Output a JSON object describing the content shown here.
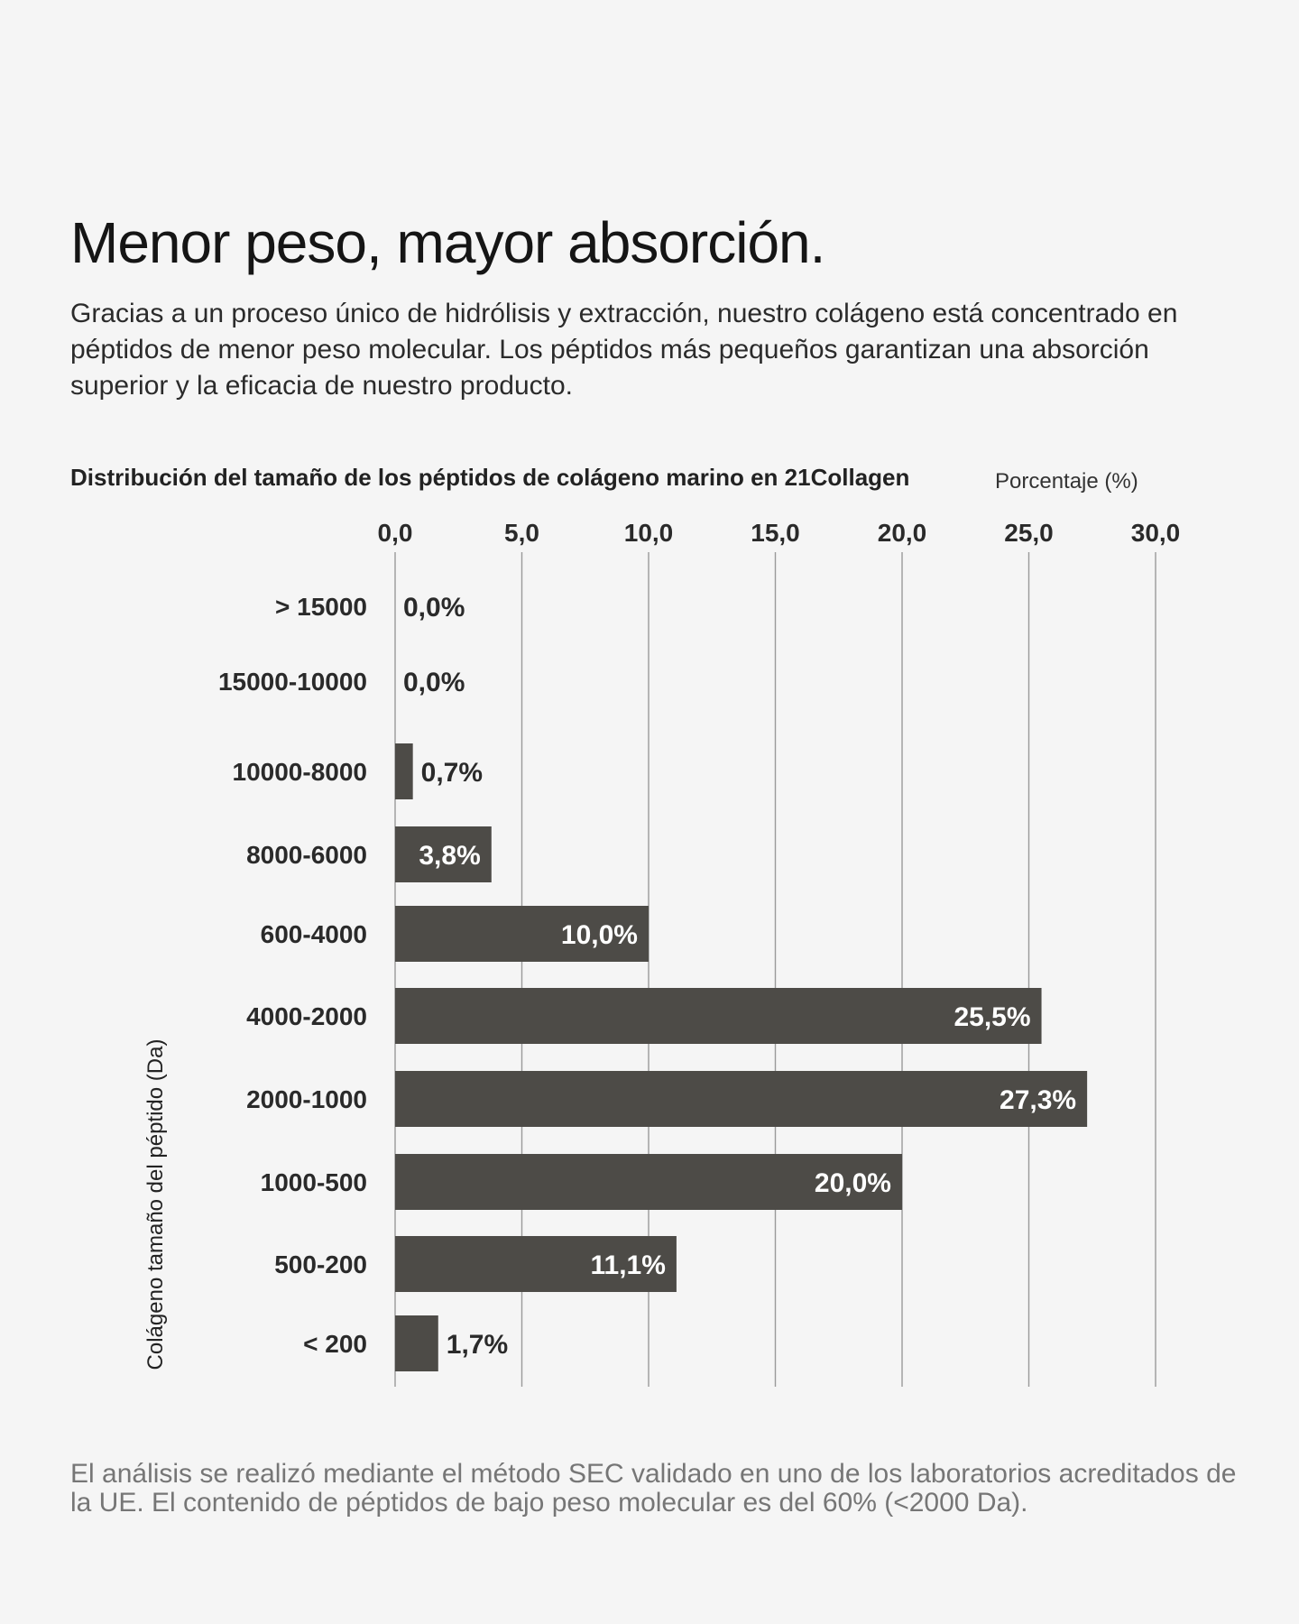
{
  "header": {
    "title": "Menor peso, mayor absorción.",
    "intro": "Gracias a un proceso único de hidrólisis y extracción, nuestro colágeno está concentrado en péptidos de menor peso molecular. Los péptidos más pequeños garantizan una absorción superior y la eficacia de nuestro producto."
  },
  "chart_data": {
    "type": "bar",
    "orientation": "horizontal",
    "title": "Distribución del tamaño de los péptidos de colágeno marino en 21Collagen",
    "xlabel": "Porcentaje (%)",
    "ylabel": "Colágeno tamaño del péptido (Da)",
    "xlim": [
      0,
      30
    ],
    "x_ticks": [
      0,
      5,
      10,
      15,
      20,
      25,
      30
    ],
    "x_tick_labels": [
      "0,0",
      "5,0",
      "10,0",
      "15,0",
      "20,0",
      "25,0",
      "30,0"
    ],
    "grid": true,
    "categories": [
      "> 15000",
      "15000-10000",
      "10000-8000",
      "8000-6000",
      "600-4000",
      "4000-2000",
      "2000-1000",
      "1000-500",
      "500-200",
      "< 200"
    ],
    "values": [
      0.0,
      0.0,
      0.7,
      3.8,
      10.0,
      25.5,
      27.3,
      20.0,
      11.1,
      1.7
    ],
    "data_labels": [
      "0,0%",
      "0,0%",
      "0,7%",
      "3,8%",
      "10,0%",
      "25,5%",
      "27,3%",
      "20,0%",
      "11,1%",
      "1,7%"
    ],
    "bar_color": "#4d4b47",
    "grid_color": "#9a9a9a"
  },
  "footnote": "El análisis se realizó mediante el método SEC validado en uno de los laboratorios acreditados de la UE. El contenido de péptidos de bajo peso molecular es del 60% (<2000 Da)."
}
